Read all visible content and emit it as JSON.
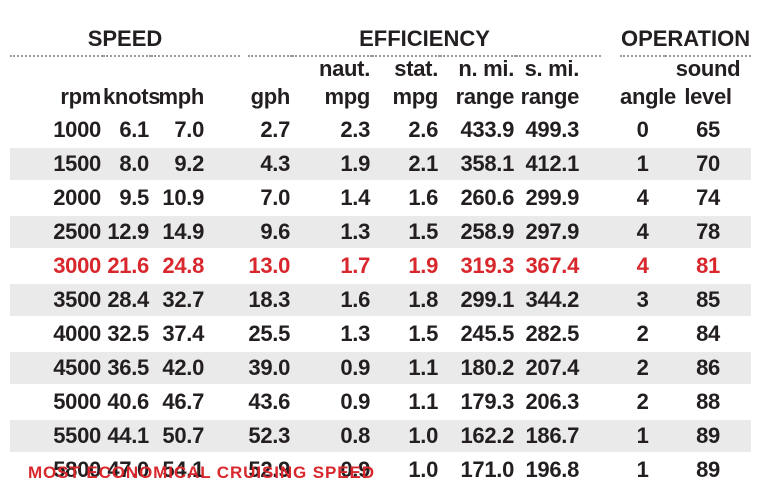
{
  "chart_data": {
    "type": "table",
    "column_groups": [
      {
        "label": "SPEED",
        "columns": 3
      },
      {
        "label": "EFFICIENCY",
        "columns": 5
      },
      {
        "label": "OPERATION",
        "columns": 2
      }
    ],
    "header_line1": [
      "",
      "",
      "",
      "",
      "naut.",
      "stat.",
      "n. mi.",
      "s. mi.",
      "",
      "sound"
    ],
    "header_line2": [
      "rpm",
      "knots",
      "mph",
      "gph",
      "mpg",
      "mpg",
      "range",
      "range",
      "angle",
      "level"
    ],
    "rows": [
      {
        "cells": [
          "1000",
          "6.1",
          "7.0",
          "2.7",
          "2.3",
          "2.6",
          "433.9",
          "499.3",
          "0",
          "65"
        ],
        "highlight": false
      },
      {
        "cells": [
          "1500",
          "8.0",
          "9.2",
          "4.3",
          "1.9",
          "2.1",
          "358.1",
          "412.1",
          "1",
          "70"
        ],
        "highlight": false
      },
      {
        "cells": [
          "2000",
          "9.5",
          "10.9",
          "7.0",
          "1.4",
          "1.6",
          "260.6",
          "299.9",
          "4",
          "74"
        ],
        "highlight": false
      },
      {
        "cells": [
          "2500",
          "12.9",
          "14.9",
          "9.6",
          "1.3",
          "1.5",
          "258.9",
          "297.9",
          "4",
          "78"
        ],
        "highlight": false
      },
      {
        "cells": [
          "3000",
          "21.6",
          "24.8",
          "13.0",
          "1.7",
          "1.9",
          "319.3",
          "367.4",
          "4",
          "81"
        ],
        "highlight": true
      },
      {
        "cells": [
          "3500",
          "28.4",
          "32.7",
          "18.3",
          "1.6",
          "1.8",
          "299.1",
          "344.2",
          "3",
          "85"
        ],
        "highlight": false
      },
      {
        "cells": [
          "4000",
          "32.5",
          "37.4",
          "25.5",
          "1.3",
          "1.5",
          "245.5",
          "282.5",
          "2",
          "84"
        ],
        "highlight": false
      },
      {
        "cells": [
          "4500",
          "36.5",
          "42.0",
          "39.0",
          "0.9",
          "1.1",
          "180.2",
          "207.4",
          "2",
          "86"
        ],
        "highlight": false
      },
      {
        "cells": [
          "5000",
          "40.6",
          "46.7",
          "43.6",
          "0.9",
          "1.1",
          "179.3",
          "206.3",
          "2",
          "88"
        ],
        "highlight": false
      },
      {
        "cells": [
          "5500",
          "44.1",
          "50.7",
          "52.3",
          "0.8",
          "1.0",
          "162.2",
          "186.7",
          "1",
          "89"
        ],
        "highlight": false
      },
      {
        "cells": [
          "5800",
          "47.0",
          "54.1",
          "52.9",
          "0.9",
          "1.0",
          "171.0",
          "196.8",
          "1",
          "89"
        ],
        "highlight": false
      }
    ],
    "highlighted_row_rpm": "3000",
    "footnote": "MOST ECONOMICAL CRUISING SPEED",
    "layout_hints": {
      "striped_rows": "every second data row starting with 1500",
      "highlight_style": "red text"
    }
  },
  "colors": {
    "highlight_red": "#d8282d",
    "row_stripe": "#eaeaea",
    "text": "#231f20",
    "dotted_rule": "#9a9a9a"
  }
}
